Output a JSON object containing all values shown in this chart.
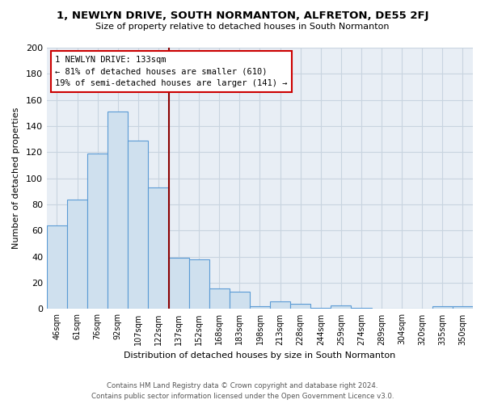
{
  "title": "1, NEWLYN DRIVE, SOUTH NORMANTON, ALFRETON, DE55 2FJ",
  "subtitle": "Size of property relative to detached houses in South Normanton",
  "xlabel": "Distribution of detached houses by size in South Normanton",
  "ylabel": "Number of detached properties",
  "bar_labels": [
    "46sqm",
    "61sqm",
    "76sqm",
    "92sqm",
    "107sqm",
    "122sqm",
    "137sqm",
    "152sqm",
    "168sqm",
    "183sqm",
    "198sqm",
    "213sqm",
    "228sqm",
    "244sqm",
    "259sqm",
    "274sqm",
    "289sqm",
    "304sqm",
    "320sqm",
    "335sqm",
    "350sqm"
  ],
  "bar_values": [
    64,
    84,
    119,
    151,
    129,
    93,
    39,
    38,
    16,
    13,
    2,
    6,
    4,
    1,
    3,
    1,
    0,
    0,
    0,
    2,
    2
  ],
  "bar_color": "#cfe0ee",
  "bar_edge_color": "#5b9bd5",
  "vline_color": "#8b0000",
  "annotation_title": "1 NEWLYN DRIVE: 133sqm",
  "annotation_line1": "← 81% of detached houses are smaller (610)",
  "annotation_line2": "19% of semi-detached houses are larger (141) →",
  "ylim": [
    0,
    200
  ],
  "yticks": [
    0,
    20,
    40,
    60,
    80,
    100,
    120,
    140,
    160,
    180,
    200
  ],
  "footer1": "Contains HM Land Registry data © Crown copyright and database right 2024.",
  "footer2": "Contains public sector information licensed under the Open Government Licence v3.0.",
  "bg_color": "#ffffff",
  "plot_bg_color": "#e8eef5",
  "grid_color": "#c8d4e0"
}
